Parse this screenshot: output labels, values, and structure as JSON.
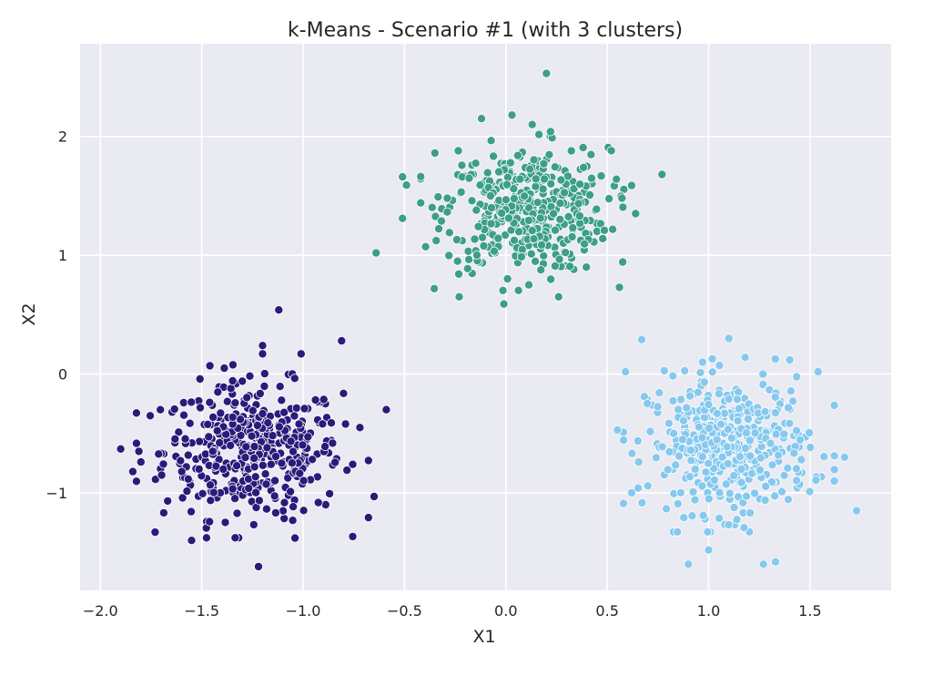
{
  "chart_data": {
    "type": "scatter",
    "title": "k-Means - Scenario #1 (with 3 clusters)",
    "xlabel": "X1",
    "ylabel": "X2",
    "xlim": [
      -2.1,
      1.9
    ],
    "ylim": [
      -1.82,
      2.78
    ],
    "xticks": [
      -2.0,
      -1.5,
      -1.0,
      -0.5,
      0.0,
      0.5,
      1.0,
      1.5
    ],
    "xtick_labels": [
      "−2.0",
      "−1.5",
      "−1.0",
      "−0.5",
      "0.0",
      "0.5",
      "1.0",
      "1.5"
    ],
    "yticks": [
      -1,
      0,
      1,
      2
    ],
    "ytick_labels": [
      "−1",
      "0",
      "1",
      "2"
    ],
    "grid": true,
    "background_color": "#eaeaf2",
    "series": [
      {
        "color": "#2a1a7a",
        "center": [
          -1.25,
          -0.65
        ],
        "spread": [
          0.22,
          0.28
        ],
        "count": 420,
        "points": [
          [
            -1.9,
            -0.63
          ],
          [
            -1.84,
            -0.82
          ],
          [
            -1.81,
            -0.65
          ],
          [
            -1.8,
            -0.74
          ],
          [
            -1.73,
            -1.33
          ],
          [
            -1.55,
            -1.4
          ],
          [
            -1.22,
            -1.62
          ],
          [
            -1.12,
            0.54
          ],
          [
            -1.2,
            0.24
          ],
          [
            -1.2,
            0.17
          ],
          [
            -1.01,
            0.17
          ],
          [
            -0.81,
            0.28
          ],
          [
            -0.59,
            -0.3
          ],
          [
            -0.65,
            -1.03
          ],
          [
            -0.72,
            -0.45
          ],
          [
            -1.04,
            -1.38
          ],
          [
            -1.46,
            0.07
          ]
        ]
      },
      {
        "color": "#3d9e8a",
        "center": [
          0.1,
          1.38
        ],
        "spread": [
          0.2,
          0.26
        ],
        "count": 420,
        "points": [
          [
            0.2,
            2.53
          ],
          [
            0.03,
            2.18
          ],
          [
            -0.12,
            2.15
          ],
          [
            0.13,
            2.1
          ],
          [
            0.22,
            2.04
          ],
          [
            -0.64,
            1.02
          ],
          [
            -0.51,
            1.31
          ],
          [
            -0.51,
            1.66
          ],
          [
            -0.49,
            1.59
          ],
          [
            0.77,
            1.68
          ],
          [
            0.52,
            1.88
          ],
          [
            0.64,
            1.35
          ],
          [
            -0.23,
            0.65
          ],
          [
            -0.01,
            0.59
          ],
          [
            0.26,
            0.65
          ],
          [
            0.56,
            0.73
          ],
          [
            -0.35,
            1.86
          ]
        ]
      },
      {
        "color": "#87c9ee",
        "center": [
          1.1,
          -0.6
        ],
        "spread": [
          0.2,
          0.28
        ],
        "count": 420,
        "points": [
          [
            1.1,
            0.3
          ],
          [
            0.67,
            0.29
          ],
          [
            0.59,
            0.02
          ],
          [
            0.55,
            -0.47
          ],
          [
            0.62,
            -1.0
          ],
          [
            1.0,
            -1.48
          ],
          [
            0.9,
            -1.6
          ],
          [
            1.27,
            -1.6
          ],
          [
            1.33,
            -1.58
          ],
          [
            1.73,
            -1.15
          ],
          [
            1.67,
            -0.7
          ],
          [
            1.54,
            0.02
          ],
          [
            1.4,
            0.12
          ],
          [
            1.18,
            0.14
          ],
          [
            0.97,
            0.1
          ]
        ]
      }
    ]
  }
}
